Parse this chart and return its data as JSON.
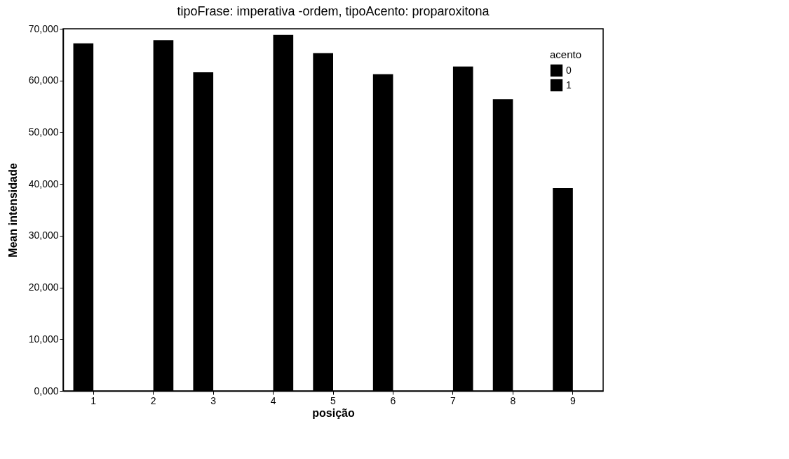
{
  "chart_data": {
    "type": "bar",
    "title": "tipoFrase: imperativa -ordem, tipoAcento: proparoxitona",
    "xlabel": "posição",
    "ylabel": "Mean intensidade",
    "legend_title": "acento",
    "legend": "top right",
    "grid": false,
    "categories": [
      "1",
      "2",
      "3",
      "4",
      "5",
      "6",
      "7",
      "8",
      "9"
    ],
    "series": [
      {
        "name": "0",
        "color": "#000000",
        "values": [
          67200,
          null,
          61600,
          null,
          65300,
          61200,
          null,
          56400,
          39200
        ]
      },
      {
        "name": "1",
        "color": "#000000",
        "values": [
          null,
          67800,
          null,
          68800,
          null,
          null,
          62700,
          null,
          null
        ]
      }
    ],
    "ylim": [
      0,
      70000
    ],
    "yticks": [
      {
        "value": 0,
        "label": "0,000"
      },
      {
        "value": 10000,
        "label": "10,000"
      },
      {
        "value": 20000,
        "label": "20,000"
      },
      {
        "value": 30000,
        "label": "30,000"
      },
      {
        "value": 40000,
        "label": "40,000"
      },
      {
        "value": 50000,
        "label": "50,000"
      },
      {
        "value": 60000,
        "label": "60,000"
      },
      {
        "value": 70000,
        "label": "70,000"
      }
    ]
  }
}
